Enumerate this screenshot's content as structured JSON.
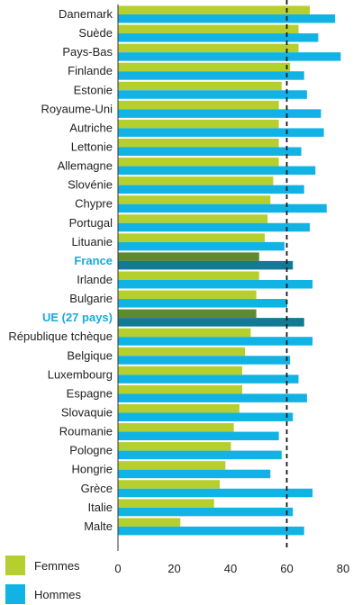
{
  "chart_data": {
    "type": "bar",
    "orientation": "horizontal",
    "categories": [
      "Danemark",
      "Suède",
      "Pays-Bas",
      "Finlande",
      "Estonie",
      "Royaume-Uni",
      "Autriche",
      "Lettonie",
      "Allemagne",
      "Slovénie",
      "Chypre",
      "Portugal",
      "Lituanie",
      "France",
      "Irlande",
      "Bulgarie",
      "UE (27 pays)",
      "République tchèque",
      "Belgique",
      "Luxembourg",
      "Espagne",
      "Slovaquie",
      "Roumanie",
      "Pologne",
      "Hongrie",
      "Grèce",
      "Italie",
      "Malte"
    ],
    "highlighted_categories": [
      "France",
      "UE (27 pays)"
    ],
    "series": [
      {
        "name": "Femmes",
        "color": "#b5cf2e",
        "highlight_color": "#5c8a2e",
        "values": [
          68,
          64,
          64,
          61,
          58,
          57,
          57,
          57,
          57,
          55,
          54,
          53,
          52,
          50,
          50,
          49,
          49,
          47,
          45,
          44,
          44,
          43,
          41,
          40,
          38,
          36,
          34,
          22
        ]
      },
      {
        "name": "Hommes",
        "color": "#11b3e5",
        "highlight_color": "#127a94",
        "values": [
          77,
          71,
          79,
          66,
          67,
          72,
          73,
          65,
          70,
          66,
          74,
          68,
          59,
          62,
          69,
          60,
          66,
          69,
          61,
          64,
          67,
          62,
          57,
          58,
          54,
          69,
          62,
          66
        ]
      }
    ],
    "xlim": [
      0,
      80
    ],
    "x_ticks": [
      "0",
      "20",
      "40",
      "60",
      "80"
    ],
    "reference_line": 60,
    "legend_position": "bottom-left"
  }
}
